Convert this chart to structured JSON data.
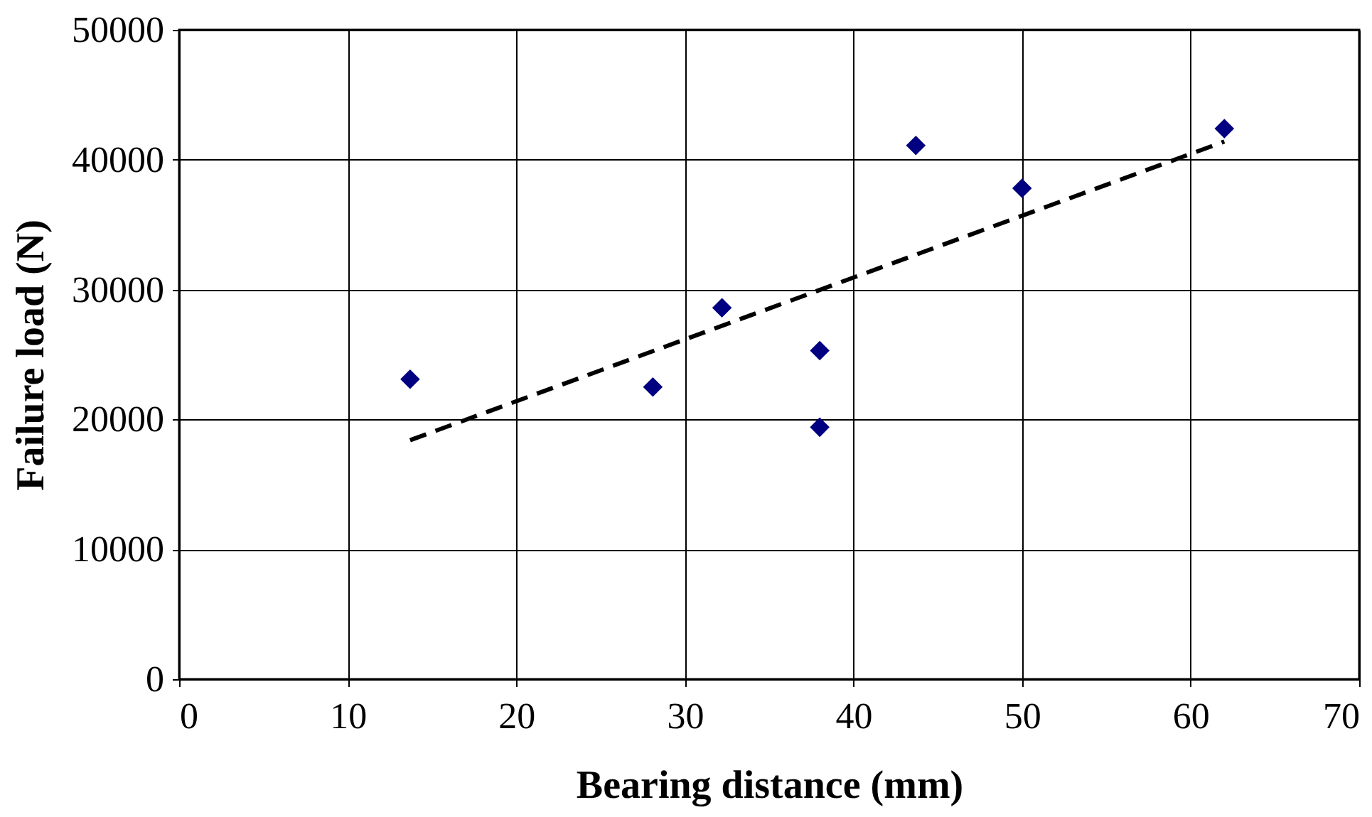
{
  "chart_data": {
    "type": "scatter",
    "xlabel": "Bearing distance (mm)",
    "ylabel": "Failure load (N)",
    "xlim": [
      0,
      70
    ],
    "xticks": [
      0,
      10,
      20,
      30,
      40,
      50,
      60,
      70
    ],
    "ylim": [
      0,
      50000
    ],
    "yticks": [
      0,
      10000,
      20000,
      30000,
      40000,
      50000
    ],
    "grid": true,
    "series": [
      {
        "color": "#000080",
        "marker": "diamond",
        "x": [
          13.7,
          28.1,
          32.2,
          38.0,
          38.0,
          43.7,
          50.0,
          62.0
        ],
        "values": [
          23100,
          22500,
          28600,
          25300,
          19400,
          41100,
          37800,
          42400
        ]
      },
      {
        "type": "line",
        "color": "#000000",
        "line_style": "dashed",
        "x": [
          13.7,
          62.0
        ],
        "values": [
          18400,
          41400
        ]
      }
    ]
  }
}
